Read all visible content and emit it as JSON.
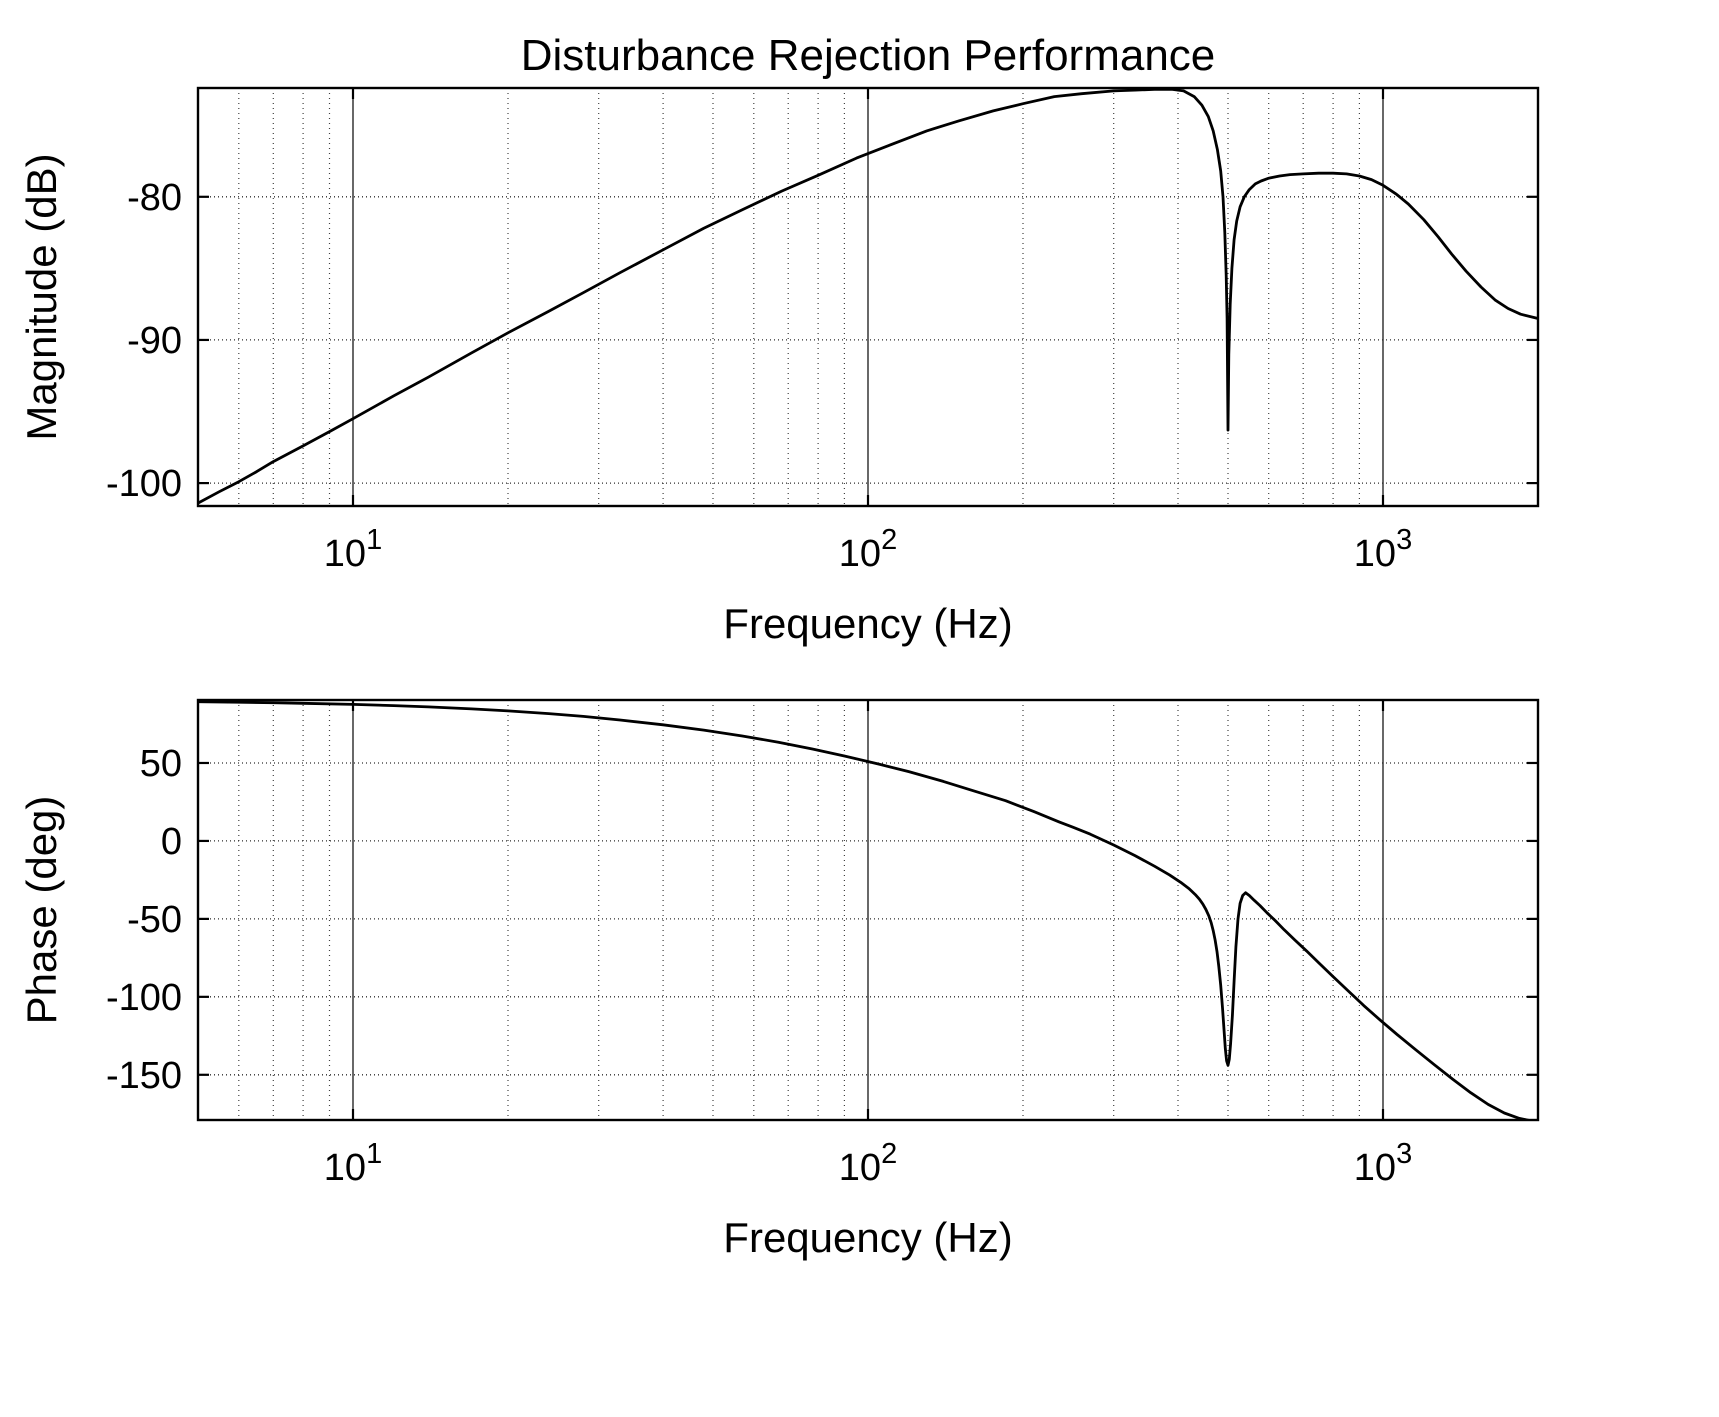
{
  "figure": {
    "title": "Disturbance Rejection Performance",
    "background_color": "#ffffff",
    "line_color": "#000000",
    "grid_color": "#333333"
  },
  "chart_data": [
    {
      "type": "line",
      "name": "magnitude",
      "title": "Disturbance Rejection Performance",
      "xlabel": "Frequency (Hz)",
      "ylabel": "Magnitude (dB)",
      "xscale": "log",
      "xlim": [
        5,
        2000
      ],
      "ylim": [
        -101.6,
        -72.4
      ],
      "xticks": [
        10,
        100,
        1000
      ],
      "yticks": [
        -100,
        -90,
        -80
      ],
      "grid": true,
      "minor_grid": true,
      "series": [
        {
          "name": "magnitude_dB",
          "x": [
            5,
            5.5,
            6,
            6.5,
            7,
            8,
            9,
            10,
            12,
            14,
            17,
            20,
            24,
            28,
            33,
            40,
            48,
            57,
            68,
            80,
            95,
            110,
            130,
            150,
            175,
            200,
            230,
            260,
            300,
            330,
            360,
            390,
            410,
            430,
            445,
            458,
            468,
            477,
            484,
            489,
            493,
            496,
            498,
            500,
            502,
            505,
            509,
            514,
            520,
            528,
            538,
            550,
            565,
            580,
            600,
            630,
            660,
            700,
            750,
            800,
            850,
            900,
            950,
            1000,
            1060,
            1120,
            1200,
            1280,
            1360,
            1450,
            1550,
            1650,
            1750,
            1850,
            2000
          ],
          "y": [
            -101.4,
            -100.6,
            -99.9,
            -99.2,
            -98.5,
            -97.4,
            -96.4,
            -95.5,
            -93.9,
            -92.6,
            -90.9,
            -89.5,
            -88.0,
            -86.7,
            -85.3,
            -83.7,
            -82.2,
            -80.9,
            -79.6,
            -78.5,
            -77.3,
            -76.4,
            -75.4,
            -74.7,
            -74.0,
            -73.5,
            -73.0,
            -72.8,
            -72.6,
            -72.55,
            -72.5,
            -72.5,
            -72.6,
            -73.0,
            -73.6,
            -74.4,
            -75.4,
            -76.7,
            -78.2,
            -80.0,
            -82.5,
            -85.5,
            -88.5,
            -96.3,
            -91.0,
            -87.5,
            -85.0,
            -83.0,
            -81.7,
            -80.7,
            -80.0,
            -79.5,
            -79.1,
            -78.9,
            -78.7,
            -78.55,
            -78.45,
            -78.4,
            -78.35,
            -78.35,
            -78.4,
            -78.55,
            -78.8,
            -79.2,
            -79.8,
            -80.5,
            -81.6,
            -82.8,
            -84.0,
            -85.2,
            -86.3,
            -87.2,
            -87.8,
            -88.2,
            -88.5
          ]
        }
      ]
    },
    {
      "type": "line",
      "name": "phase",
      "title": "",
      "xlabel": "Frequency (Hz)",
      "ylabel": "Phase (deg)",
      "xscale": "log",
      "xlim": [
        5,
        2000
      ],
      "ylim": [
        -179,
        90.4
      ],
      "xticks": [
        10,
        100,
        1000
      ],
      "yticks": [
        50,
        0,
        -50,
        -100,
        -150
      ],
      "grid": true,
      "minor_grid": true,
      "series": [
        {
          "name": "phase_deg",
          "x": [
            5,
            6,
            7,
            8,
            10,
            12,
            14,
            17,
            20,
            24,
            28,
            33,
            40,
            48,
            57,
            67,
            78,
            90,
            105,
            120,
            140,
            160,
            185,
            210,
            235,
            250,
            270,
            300,
            330,
            360,
            385,
            405,
            420,
            432,
            440,
            447,
            453,
            459,
            464,
            468,
            472,
            476,
            480,
            484,
            488,
            491,
            494,
            497,
            500,
            503,
            506,
            510,
            514,
            518,
            523,
            528,
            534,
            541,
            550,
            562,
            577,
            595,
            617,
            643,
            674,
            710,
            752,
            800,
            855,
            917,
            988,
            1068,
            1158,
            1258,
            1368,
            1480,
            1600,
            1720,
            1840,
            1930,
            2000
          ],
          "y": [
            89.3,
            89.0,
            88.7,
            88.3,
            87.6,
            86.8,
            86.0,
            84.7,
            83.4,
            81.7,
            79.9,
            77.6,
            74.5,
            71.1,
            67.3,
            63.3,
            59.0,
            54.5,
            49.3,
            44.5,
            38.2,
            32.2,
            25.8,
            18.8,
            12.2,
            8.8,
            4.4,
            -2.6,
            -9.4,
            -16.2,
            -21.8,
            -26.6,
            -30.6,
            -34.4,
            -37.4,
            -40.6,
            -44.0,
            -48.0,
            -52.5,
            -57.5,
            -63.5,
            -71.0,
            -80.5,
            -92.5,
            -107.0,
            -120.0,
            -133.0,
            -141.0,
            -144.0,
            -140.0,
            -130.0,
            -112.0,
            -90.0,
            -68.0,
            -50.0,
            -40.0,
            -35.0,
            -33.2,
            -35.0,
            -38.0,
            -41.5,
            -46.0,
            -51.0,
            -57.0,
            -63.5,
            -70.5,
            -78.5,
            -87.0,
            -96.0,
            -105.5,
            -115.0,
            -124.5,
            -134.0,
            -143.5,
            -153.0,
            -161.5,
            -169.0,
            -174.5,
            -178.0,
            -179.4,
            -179.8
          ]
        }
      ]
    }
  ]
}
